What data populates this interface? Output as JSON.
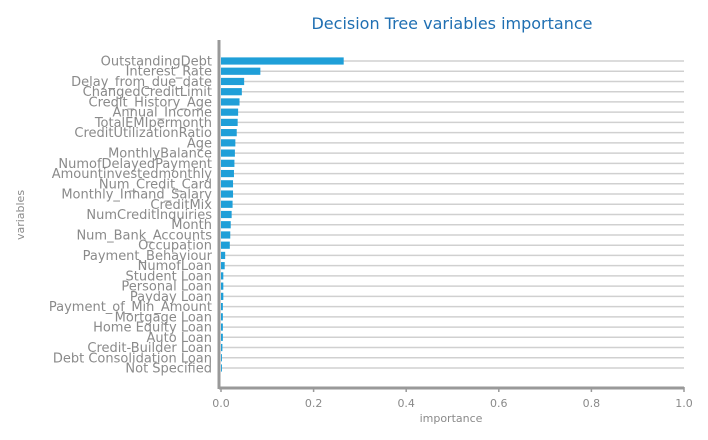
{
  "chart_data": {
    "type": "bar",
    "orientation": "horizontal",
    "title": "Decision Tree variables importance",
    "xlabel": "importance",
    "ylabel": "variables",
    "xlim": [
      0,
      1.0
    ],
    "xticks": [
      "0.0",
      "0.2",
      "0.4",
      "0.6",
      "0.8",
      "1.0"
    ],
    "grid": true,
    "color": "#1f9fd8",
    "categories": [
      "OutstandingDebt",
      "Interest_Rate",
      "Delay_from_due_date",
      "ChangedCreditLimit",
      "Credit_History_Age",
      "Annual_Income",
      "TotalEMIpermonth",
      "CreditUtilizationRatio",
      "Age",
      "MonthlyBalance",
      "NumofDelayedPayment",
      "Amountinvestedmonthly",
      "Num_Credit_Card",
      "Monthly_Inhand_Salary",
      "CreditMix",
      "NumCreditInquiries",
      "Month",
      "Num_Bank_Accounts",
      "Occupation",
      "Payment_Behaviour",
      "NumofLoan",
      "Student Loan",
      "Personal Loan",
      "Payday Loan",
      "Payment_of_Min_Amount",
      "Mortgage Loan",
      "Home Equity Loan",
      "Auto Loan",
      "Credit-Builder Loan",
      "Debt Consolidation Loan",
      "Not Specified"
    ],
    "values": [
      0.265,
      0.085,
      0.05,
      0.045,
      0.04,
      0.037,
      0.036,
      0.034,
      0.031,
      0.03,
      0.029,
      0.028,
      0.026,
      0.026,
      0.025,
      0.023,
      0.021,
      0.02,
      0.019,
      0.009,
      0.008,
      0.005,
      0.005,
      0.005,
      0.004,
      0.004,
      0.004,
      0.004,
      0.003,
      0.002,
      0.002
    ]
  }
}
